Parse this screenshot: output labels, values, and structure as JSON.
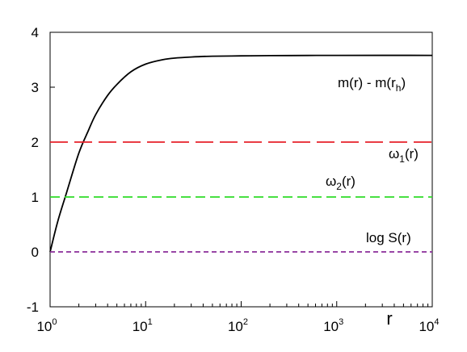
{
  "chart_data": {
    "type": "line",
    "title": "",
    "xlabel": "r",
    "ylabel": "",
    "x_scale": "log",
    "xlim": [
      1,
      10000
    ],
    "ylim": [
      -1,
      4
    ],
    "x_ticks": [
      {
        "value": 1,
        "base": "10",
        "exp": "0"
      },
      {
        "value": 10,
        "base": "10",
        "exp": "1"
      },
      {
        "value": 100,
        "base": "10",
        "exp": "2"
      },
      {
        "value": 1000,
        "base": "10",
        "exp": "3"
      },
      {
        "value": 10000,
        "base": "10",
        "exp": "4"
      }
    ],
    "y_ticks": [
      -1,
      0,
      1,
      2,
      3,
      4
    ],
    "grid": false,
    "series": [
      {
        "label_main": "m(r) - m(r",
        "label_sub": "h",
        "label_tail": ")",
        "color": "#000000",
        "style": "solid",
        "x": [
          1,
          1.2,
          1.5,
          2,
          2.5,
          3,
          4,
          5,
          7,
          10,
          15,
          20,
          30,
          50,
          100,
          200,
          500,
          1000,
          10000
        ],
        "y": [
          0,
          0.55,
          1.1,
          1.8,
          2.2,
          2.5,
          2.85,
          3.05,
          3.28,
          3.42,
          3.5,
          3.53,
          3.55,
          3.565,
          3.57,
          3.575,
          3.578,
          3.58,
          3.58
        ]
      },
      {
        "label_main": "ω",
        "label_sub": "1",
        "label_tail": "(r)",
        "color": "#e8202a",
        "style": "long-dash",
        "x": [
          1,
          10000
        ],
        "y": [
          2,
          2
        ]
      },
      {
        "label_main": "ω",
        "label_sub": "2",
        "label_tail": "(r)",
        "color": "#2fdc28",
        "style": "dash",
        "x": [
          1,
          10000
        ],
        "y": [
          1,
          1
        ]
      },
      {
        "label_main": "log S(r)",
        "label_sub": "",
        "label_tail": "",
        "color": "#8b2d9a",
        "style": "short-dash",
        "x": [
          1,
          10000
        ],
        "y": [
          0,
          0
        ]
      }
    ]
  }
}
